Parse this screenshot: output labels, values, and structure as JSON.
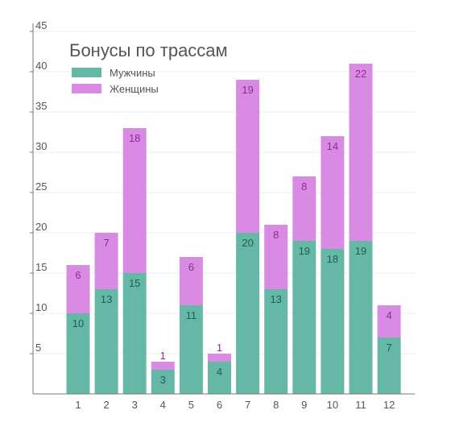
{
  "chart_data": {
    "type": "bar",
    "stacked": true,
    "title": "Бонусы по трассам",
    "xlabel": "",
    "ylabel": "",
    "categories": [
      "1",
      "2",
      "3",
      "4",
      "5",
      "6",
      "7",
      "8",
      "9",
      "10",
      "11",
      "12"
    ],
    "series": [
      {
        "name": "Мужчины",
        "color": "#66b8a6",
        "label_color": "#1f5f4f",
        "values": [
          10,
          13,
          15,
          3,
          11,
          4,
          20,
          13,
          19,
          18,
          19,
          7
        ]
      },
      {
        "name": "Женщины",
        "color": "#d98be3",
        "label_color": "#8e2a9a",
        "values": [
          6,
          7,
          18,
          1,
          6,
          1,
          19,
          8,
          8,
          14,
          22,
          4
        ]
      }
    ],
    "ylim": [
      0,
      45
    ],
    "yticks": [
      5,
      10,
      15,
      20,
      25,
      30,
      35,
      40,
      45
    ],
    "grid": true,
    "legend_position": "top-left"
  }
}
